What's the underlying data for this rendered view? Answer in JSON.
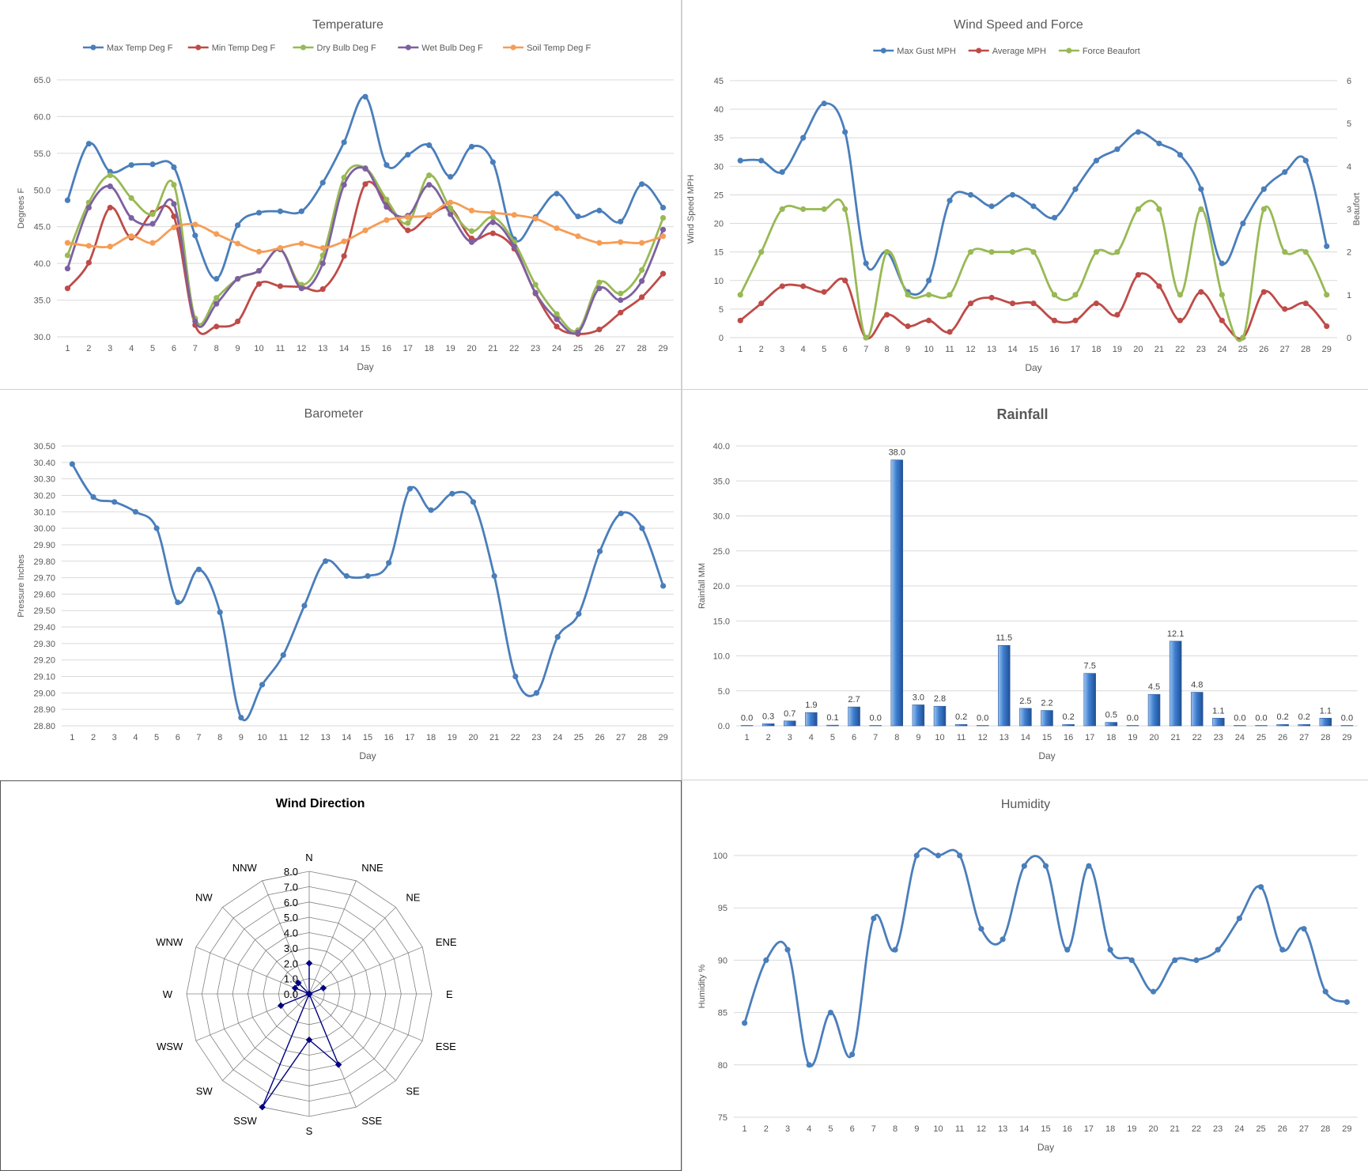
{
  "chart_data": [
    {
      "id": "temperature",
      "type": "line",
      "title": "Temperature",
      "xlabel": "Day",
      "ylabel": "Degrees F",
      "categories": [
        "1",
        "2",
        "3",
        "4",
        "5",
        "6",
        "7",
        "8",
        "9",
        "10",
        "11",
        "12",
        "13",
        "14",
        "15",
        "16",
        "17",
        "18",
        "19",
        "20",
        "21",
        "22",
        "23",
        "24",
        "25",
        "26",
        "27",
        "28",
        "29"
      ],
      "ylim": [
        30,
        65
      ],
      "yticks": [
        "30.0",
        "35.0",
        "40.0",
        "45.0",
        "50.0",
        "55.0",
        "60.0",
        "65.0"
      ],
      "grid": true,
      "legend": "top",
      "series": [
        {
          "name": "Max Temp Deg F",
          "color": "#4a7ebb",
          "values": [
            48.6,
            56.3,
            52.5,
            53.4,
            53.5,
            53.1,
            43.8,
            37.9,
            45.2,
            46.9,
            47.1,
            47.1,
            51.0,
            56.5,
            62.7,
            53.4,
            54.8,
            56.1,
            51.8,
            55.9,
            53.8,
            43.3,
            46.3,
            49.5,
            46.4,
            47.2,
            45.7,
            50.8,
            47.6
          ]
        },
        {
          "name": "Min Temp Deg F",
          "color": "#be4b48",
          "values": [
            36.6,
            40.1,
            47.6,
            43.5,
            46.9,
            46.4,
            31.6,
            31.4,
            32.1,
            37.2,
            36.9,
            36.8,
            36.5,
            41.0,
            50.8,
            48.3,
            44.5,
            46.5,
            47.5,
            43.4,
            44.1,
            42.0,
            35.9,
            31.4,
            30.4,
            31.0,
            33.3,
            35.4,
            38.6
          ]
        },
        {
          "name": "Dry Bulb Deg F",
          "color": "#98b954",
          "values": [
            41.1,
            48.3,
            52.0,
            48.9,
            46.7,
            50.7,
            32.5,
            35.3,
            37.9,
            39.0,
            41.9,
            37.1,
            41.1,
            51.7,
            53.0,
            48.7,
            45.5,
            52.0,
            47.5,
            44.4,
            46.3,
            42.9,
            37.1,
            33.1,
            30.9,
            37.4,
            35.9,
            39.1,
            46.2
          ]
        },
        {
          "name": "Wet Bulb Deg F",
          "color": "#7d60a0",
          "values": [
            39.3,
            47.6,
            50.5,
            46.2,
            45.4,
            48.1,
            32.1,
            34.5,
            37.9,
            39.0,
            41.9,
            36.6,
            40.0,
            50.7,
            52.9,
            47.7,
            46.5,
            50.7,
            46.7,
            42.9,
            45.6,
            42.3,
            36.0,
            32.4,
            30.6,
            36.6,
            35.0,
            37.6,
            44.6
          ]
        },
        {
          "name": "Soil Temp Deg F",
          "color": "#f59d56",
          "values": [
            42.8,
            42.4,
            42.3,
            43.7,
            42.8,
            44.9,
            45.3,
            44.0,
            42.7,
            41.6,
            42.1,
            42.7,
            42.1,
            43.0,
            44.5,
            45.9,
            46.3,
            46.6,
            48.3,
            47.2,
            46.9,
            46.6,
            46.1,
            44.8,
            43.7,
            42.8,
            42.9,
            42.8,
            43.7
          ]
        }
      ]
    },
    {
      "id": "wind",
      "type": "line",
      "title": "Wind Speed and Force",
      "xlabel": "Day",
      "ylabel": "Wind Speed MPH",
      "y2label": "Beaufort",
      "categories": [
        "1",
        "2",
        "3",
        "4",
        "5",
        "6",
        "7",
        "8",
        "9",
        "10",
        "11",
        "12",
        "13",
        "14",
        "15",
        "16",
        "17",
        "18",
        "19",
        "20",
        "21",
        "22",
        "23",
        "24",
        "25",
        "26",
        "27",
        "28",
        "29"
      ],
      "ylim": [
        0,
        45
      ],
      "yticks": [
        "0",
        "5",
        "10",
        "15",
        "20",
        "25",
        "30",
        "35",
        "40",
        "45"
      ],
      "y2lim": [
        0,
        6
      ],
      "y2ticks": [
        "0",
        "1",
        "2",
        "3",
        "4",
        "5",
        "6"
      ],
      "grid": true,
      "legend": "top",
      "series": [
        {
          "name": "Max Gust MPH",
          "color": "#4a7ebb",
          "axis": "left",
          "values": [
            31,
            31,
            29,
            35,
            41,
            36,
            13,
            15,
            8,
            10,
            24,
            25,
            23,
            25,
            23,
            21,
            26,
            31,
            33,
            36,
            34,
            32,
            26,
            13,
            20,
            26,
            29,
            31,
            16
          ]
        },
        {
          "name": "Average MPH",
          "color": "#be4b48",
          "axis": "left",
          "values": [
            3,
            6,
            9,
            9,
            8,
            10,
            0,
            4,
            2,
            3,
            1,
            6,
            7,
            6,
            6,
            3,
            3,
            6,
            4,
            11,
            9,
            3,
            8,
            3,
            0,
            8,
            5,
            6,
            2
          ]
        },
        {
          "name": "Force Beaufort",
          "color": "#98b954",
          "axis": "right",
          "values": [
            1,
            2,
            3,
            3,
            3,
            3,
            0,
            2,
            1,
            1,
            1,
            2,
            2,
            2,
            2,
            1,
            1,
            2,
            2,
            3,
            3,
            1,
            3,
            1,
            0,
            3,
            2,
            2,
            1
          ]
        }
      ]
    },
    {
      "id": "barometer",
      "type": "line",
      "title": "Barometer",
      "xlabel": "Day",
      "ylabel": "Pressure Inches",
      "categories": [
        "1",
        "2",
        "3",
        "4",
        "5",
        "6",
        "7",
        "8",
        "9",
        "10",
        "11",
        "12",
        "13",
        "14",
        "15",
        "16",
        "17",
        "18",
        "19",
        "20",
        "21",
        "22",
        "23",
        "24",
        "25",
        "26",
        "27",
        "28",
        "29"
      ],
      "ylim": [
        28.8,
        30.5
      ],
      "yticks": [
        "28.80",
        "28.90",
        "29.00",
        "29.10",
        "29.20",
        "29.30",
        "29.40",
        "29.50",
        "29.60",
        "29.70",
        "29.80",
        "29.90",
        "30.00",
        "30.10",
        "30.20",
        "30.30",
        "30.40",
        "30.50"
      ],
      "grid": true,
      "series": [
        {
          "name": "",
          "color": "#4a7ebb",
          "values": [
            30.39,
            30.19,
            30.16,
            30.1,
            30.0,
            29.55,
            29.75,
            29.49,
            28.85,
            29.05,
            29.23,
            29.53,
            29.8,
            29.71,
            29.71,
            29.79,
            30.24,
            30.11,
            30.21,
            30.16,
            29.71,
            29.1,
            29.0,
            29.34,
            29.48,
            29.86,
            30.09,
            30.0,
            29.65
          ]
        }
      ]
    },
    {
      "id": "rainfall",
      "type": "bar",
      "title": "Rainfall",
      "xlabel": "Day",
      "ylabel": "Rainfall MM",
      "categories": [
        "1",
        "2",
        "3",
        "4",
        "5",
        "6",
        "7",
        "8",
        "9",
        "10",
        "11",
        "12",
        "13",
        "14",
        "15",
        "16",
        "17",
        "18",
        "19",
        "20",
        "21",
        "22",
        "23",
        "24",
        "25",
        "26",
        "27",
        "28",
        "29"
      ],
      "ylim": [
        0,
        40
      ],
      "yticks": [
        "0.0",
        "5.0",
        "10.0",
        "15.0",
        "20.0",
        "25.0",
        "30.0",
        "35.0",
        "40.0"
      ],
      "grid": true,
      "values": [
        0.0,
        0.3,
        0.7,
        1.9,
        0.1,
        2.7,
        0.0,
        38.0,
        3.0,
        2.8,
        0.2,
        0.0,
        11.5,
        2.5,
        2.2,
        0.2,
        7.5,
        0.5,
        0.0,
        4.5,
        12.1,
        4.8,
        1.1,
        0.0,
        0.0,
        0.2,
        0.2,
        1.1,
        0.0
      ],
      "value_labels": [
        "0.0",
        "0.3",
        "0.7",
        "1.9",
        "0.1",
        "2.7",
        "0.0",
        "38.0",
        "3.0",
        "2.8",
        "0.2",
        "0.0",
        "11.5",
        "2.5",
        "2.2",
        "0.2",
        "7.5",
        "0.5",
        "0.0",
        "4.5",
        "12.1",
        "4.8",
        "1.1",
        "0.0",
        "0.0",
        "0.2",
        "0.2",
        "1.1",
        "0.0"
      ],
      "color": "#3f74c0"
    },
    {
      "id": "wind_direction",
      "type": "radar",
      "title": "Wind Direction",
      "categories": [
        "N",
        "NNE",
        "NE",
        "ENE",
        "E",
        "ESE",
        "SE",
        "SSE",
        "S",
        "SSW",
        "SW",
        "WSW",
        "W",
        "WNW",
        "NW",
        "NNW"
      ],
      "rlim": [
        0,
        8
      ],
      "rticks": [
        "0.0",
        "1.0",
        "2.0",
        "3.0",
        "4.0",
        "5.0",
        "6.0",
        "7.0",
        "8.0"
      ],
      "values": [
        2,
        0,
        0,
        1,
        0,
        0,
        0,
        5,
        3,
        8,
        0,
        2,
        0,
        1,
        1,
        0
      ],
      "color": "#000080"
    },
    {
      "id": "humidity",
      "type": "line",
      "title": "Humidity",
      "xlabel": "Day",
      "ylabel": "Humidity %",
      "categories": [
        "1",
        "2",
        "3",
        "4",
        "5",
        "6",
        "7",
        "8",
        "9",
        "10",
        "11",
        "12",
        "13",
        "14",
        "15",
        "16",
        "17",
        "18",
        "19",
        "20",
        "21",
        "22",
        "23",
        "24",
        "25",
        "26",
        "27",
        "28",
        "29"
      ],
      "ylim": [
        75,
        100
      ],
      "yticks": [
        "75",
        "80",
        "85",
        "90",
        "95",
        "100"
      ],
      "grid": true,
      "series": [
        {
          "name": "",
          "color": "#4a7ebb",
          "values": [
            84,
            90,
            91,
            80,
            85,
            81,
            94,
            91,
            100,
            100,
            100,
            93,
            92,
            99,
            99,
            91,
            99,
            91,
            90,
            87,
            90,
            90,
            91,
            94,
            97,
            91,
            93,
            87,
            86
          ]
        }
      ]
    }
  ]
}
